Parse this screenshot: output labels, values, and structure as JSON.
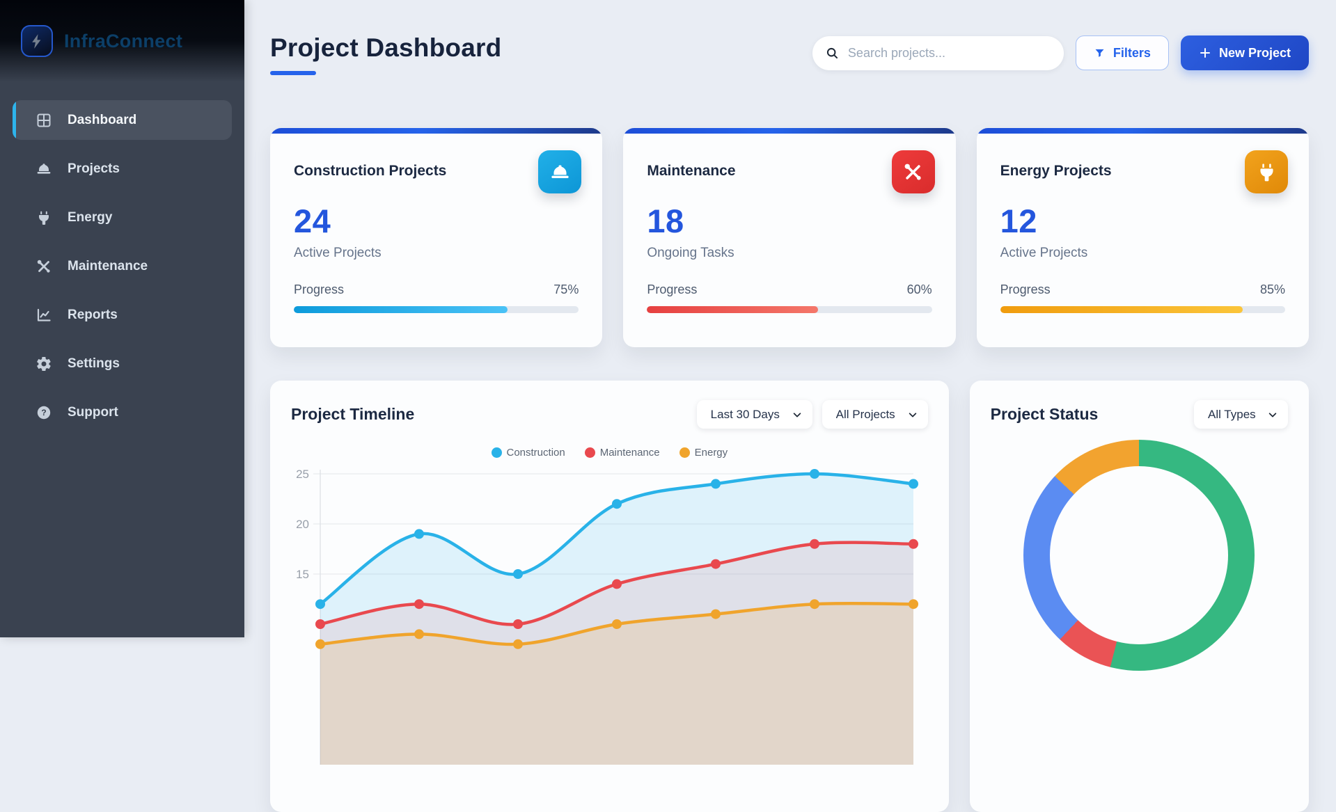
{
  "brand": {
    "name": "InfraConnect"
  },
  "sidebar": {
    "items": [
      {
        "label": "Dashboard",
        "icon": "dashboard-grid",
        "active": true
      },
      {
        "label": "Projects",
        "icon": "hard-hat",
        "active": false
      },
      {
        "label": "Energy",
        "icon": "plug",
        "active": false
      },
      {
        "label": "Maintenance",
        "icon": "tools",
        "active": false
      },
      {
        "label": "Reports",
        "icon": "chart-line",
        "active": false
      },
      {
        "label": "Settings",
        "icon": "gear",
        "active": false
      },
      {
        "label": "Support",
        "icon": "help-circle",
        "active": false
      }
    ]
  },
  "header": {
    "title": "Project Dashboard",
    "search_placeholder": "Search projects...",
    "filters_label": "Filters",
    "new_project_label": "New Project"
  },
  "colors": {
    "accent": "#2563eb",
    "card_top_gradient": "linear-gradient(90deg,#1d4ed8,#2563eb 45%,#1e3a8a)",
    "sidebar_bg": "#3a4250",
    "active_item_bar": "#2eb4ec"
  },
  "stat_cards": [
    {
      "title": "Construction Projects",
      "icon": "hard-hat",
      "icon_bg": "linear-gradient(145deg,#21b0e8,#0d96d6)",
      "value": "24",
      "subtitle": "Active Projects",
      "progress_label": "Progress",
      "progress_pct": 75,
      "progress_text": "75%",
      "bar_gradient": "linear-gradient(90deg,#0d9bdb,#4ac2f6)"
    },
    {
      "title": "Maintenance",
      "icon": "tools",
      "icon_bg": "linear-gradient(145deg,#ee3b3b,#d92c2c)",
      "value": "18",
      "subtitle": "Ongoing Tasks",
      "progress_label": "Progress",
      "progress_pct": 60,
      "progress_text": "60%",
      "bar_gradient": "linear-gradient(90deg,#e64040,#f4776a)"
    },
    {
      "title": "Energy Projects",
      "icon": "plug",
      "icon_bg": "linear-gradient(145deg,#f2a31d,#e08908)",
      "value": "12",
      "subtitle": "Active Projects",
      "progress_label": "Progress",
      "progress_pct": 85,
      "progress_text": "85%",
      "bar_gradient": "linear-gradient(90deg,#f09c0e,#fbc53a)"
    }
  ],
  "timeline_card": {
    "title": "Project Timeline",
    "range_selected": "Last 30 Days",
    "scope_selected": "All Projects"
  },
  "status_card": {
    "title": "Project Status",
    "type_selected": "All Types"
  },
  "chart_data": [
    {
      "type": "line",
      "title": "Project Timeline",
      "x": [
        1,
        2,
        3,
        4,
        5,
        6,
        7
      ],
      "x_tick_labels_visible": false,
      "series": [
        {
          "name": "Construction",
          "color": "#29b2e8",
          "fill": "rgba(41,178,232,0.14)",
          "values": [
            12,
            19,
            15,
            22,
            24,
            25,
            24
          ]
        },
        {
          "name": "Maintenance",
          "color": "#e9494e",
          "fill": "rgba(233,73,78,0.10)",
          "values": [
            10,
            12,
            10,
            14,
            16,
            18,
            18
          ]
        },
        {
          "name": "Energy",
          "color": "#f0a42c",
          "fill": "rgba(240,164,44,0.16)",
          "values": [
            8,
            9,
            8,
            10,
            11,
            12,
            12
          ]
        }
      ],
      "yticks": [
        15,
        20,
        25
      ],
      "y_visible_range": [
        11,
        26
      ],
      "grid": true,
      "legend_position": "top-center",
      "note": "Area-filled smooth line chart; bottom of plot and x-axis labels are cut off by the viewport; values estimated from gridlines."
    },
    {
      "type": "pie",
      "donut": true,
      "title": "Project Status",
      "start": "12 o'clock, clockwise",
      "labels_visible": false,
      "segments": [
        {
          "color": "#35b881",
          "percent": 54
        },
        {
          "color": "#ea5355",
          "percent": 8
        },
        {
          "color": "#5b8cf2",
          "percent": 25
        },
        {
          "color": "#f2a32f",
          "percent": 13
        }
      ]
    }
  ]
}
